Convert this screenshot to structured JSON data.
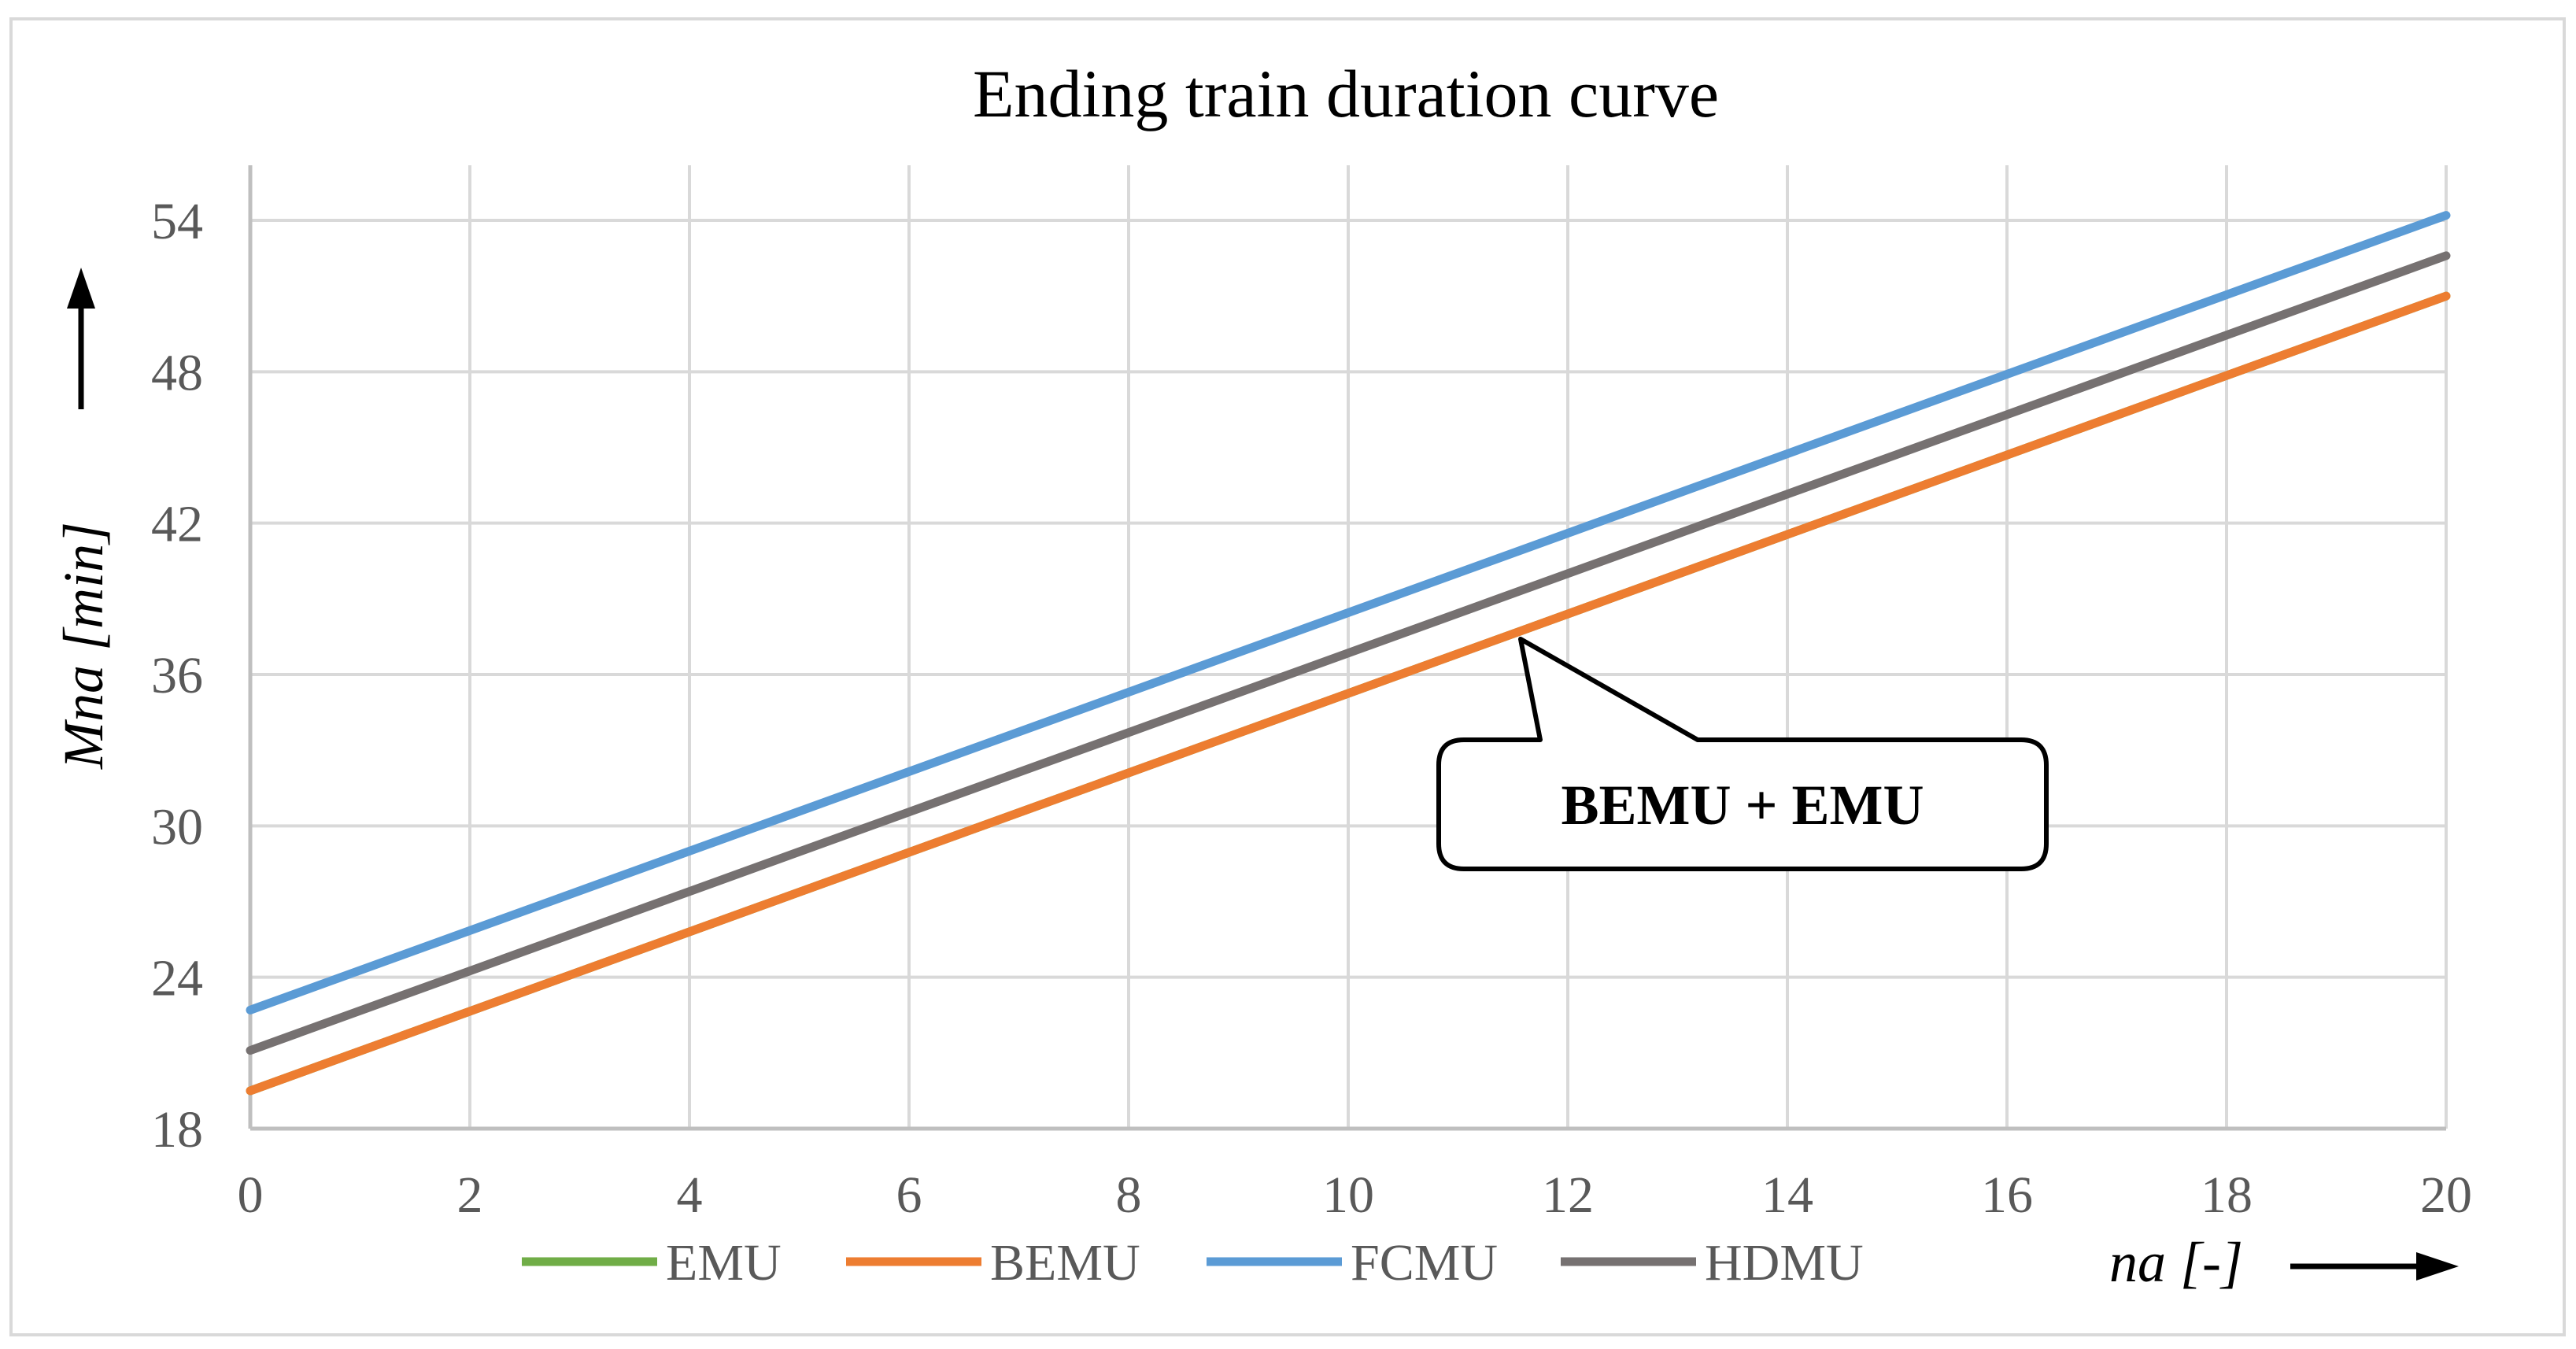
{
  "chart_data": {
    "type": "line",
    "title": "Ending train duration curve",
    "xlabel": "na [-]",
    "xlabel_main": "na",
    "xlabel_unit": " [-]",
    "ylabel": "Mna [min]",
    "ylabel_main": "Mna",
    "ylabel_unit": " [min]",
    "xlim": [
      0,
      20
    ],
    "ylim": [
      18,
      56
    ],
    "x_ticks": [
      "0",
      "2",
      "4",
      "6",
      "8",
      "10",
      "12",
      "14",
      "16",
      "18",
      "20"
    ],
    "x_tick_values": [
      0,
      2,
      4,
      6,
      8,
      10,
      12,
      14,
      16,
      18,
      20
    ],
    "y_ticks": [
      "18",
      "24",
      "30",
      "36",
      "42",
      "48",
      "54"
    ],
    "y_tick_values": [
      18,
      24,
      30,
      36,
      42,
      48,
      54
    ],
    "grid": true,
    "legend_position": "bottom",
    "series": [
      {
        "name": "EMU",
        "color": "#70AD47",
        "x": [
          0,
          20
        ],
        "values": [
          19.5,
          51.0
        ]
      },
      {
        "name": "BEMU",
        "color": "#ED7D31",
        "x": [
          0,
          20
        ],
        "values": [
          19.5,
          51.0
        ]
      },
      {
        "name": "FCMU",
        "color": "#5B9BD5",
        "x": [
          0,
          20
        ],
        "values": [
          22.7,
          54.2
        ]
      },
      {
        "name": "HDMU",
        "color": "#767171",
        "x": [
          0,
          20
        ],
        "values": [
          21.1,
          52.6
        ]
      }
    ],
    "annotations": [
      {
        "text": "BEMU + EMU",
        "points_to_x": 11.5,
        "points_to_y": 37.7
      }
    ]
  }
}
